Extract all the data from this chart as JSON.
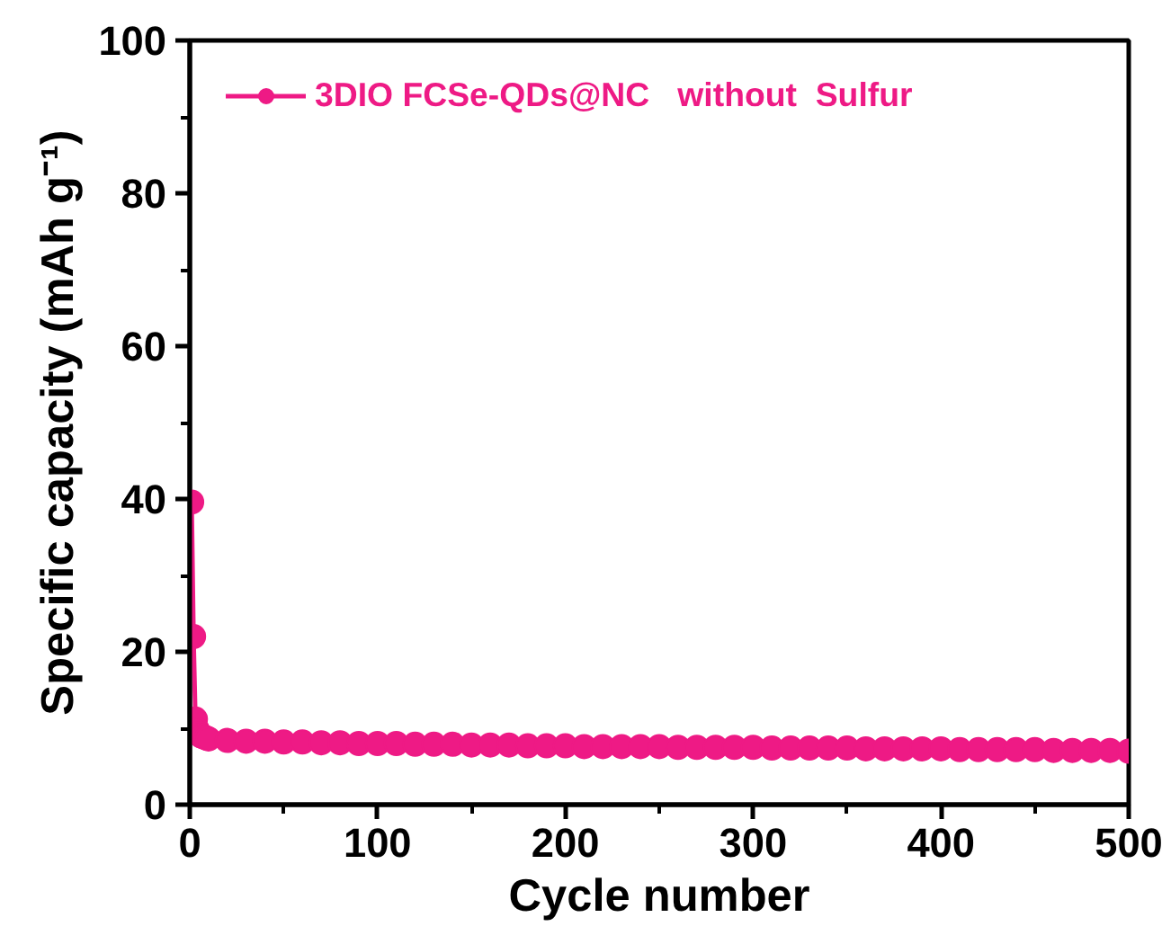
{
  "chart_data": {
    "type": "line",
    "xlabel": "Cycle number",
    "ylabel": "Specific capacity (mAh g⁻¹)",
    "x": [
      1,
      2,
      3,
      4,
      5,
      6,
      7,
      8,
      9,
      10,
      20,
      30,
      40,
      50,
      60,
      70,
      80,
      90,
      100,
      110,
      120,
      130,
      140,
      150,
      160,
      170,
      180,
      190,
      200,
      210,
      220,
      230,
      240,
      250,
      260,
      270,
      280,
      290,
      300,
      310,
      320,
      330,
      340,
      350,
      360,
      370,
      380,
      390,
      400,
      410,
      420,
      430,
      440,
      450,
      460,
      470,
      480,
      490,
      500
    ],
    "series": [
      {
        "name": "3DIO FCSe-QDs@NC   without  Sulfur",
        "color": "#ee1a85",
        "values": [
          39.6,
          22.0,
          11.2,
          9.8,
          9.3,
          9.0,
          8.9,
          8.8,
          8.7,
          8.6,
          8.4,
          8.3,
          8.3,
          8.2,
          8.2,
          8.1,
          8.1,
          8.0,
          8.0,
          8.0,
          7.9,
          7.9,
          7.9,
          7.8,
          7.8,
          7.8,
          7.7,
          7.7,
          7.7,
          7.6,
          7.6,
          7.6,
          7.6,
          7.6,
          7.5,
          7.5,
          7.5,
          7.5,
          7.5,
          7.4,
          7.4,
          7.4,
          7.4,
          7.4,
          7.3,
          7.3,
          7.3,
          7.3,
          7.3,
          7.2,
          7.2,
          7.2,
          7.2,
          7.2,
          7.1,
          7.1,
          7.1,
          7.1,
          7.0
        ]
      }
    ],
    "xlim": [
      0,
      500
    ],
    "ylim": [
      0,
      100
    ],
    "xticks": [
      0,
      100,
      200,
      300,
      400,
      500
    ],
    "yticks": [
      0,
      20,
      40,
      60,
      80,
      100
    ],
    "marker": "circle",
    "line_style": "solid",
    "legend": "top left",
    "grid": false
  }
}
